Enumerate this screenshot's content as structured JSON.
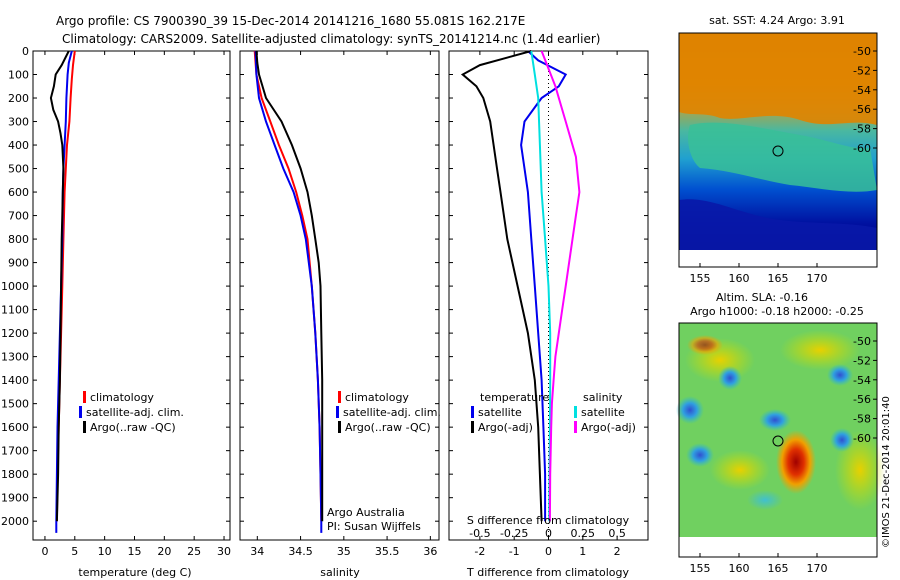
{
  "header": {
    "line1": "Argo profile: CS 7900390_39 15-Dec-2014 20141216_1680 55.081S 162.217E",
    "line2": "Climatology: CARS2009. Satellite-adjusted climatology: synTS_20141214.nc (1.4d earlier)"
  },
  "chart_data": [
    {
      "type": "line",
      "xlabel": "temperature (deg C)",
      "xlim": [
        -2,
        31
      ],
      "ylim": [
        0,
        2080
      ],
      "yreversed": true,
      "xticks": [
        0,
        5,
        10,
        15,
        20,
        25,
        30
      ],
      "yticks": [
        0,
        100,
        200,
        300,
        400,
        500,
        600,
        700,
        800,
        900,
        1000,
        1100,
        1200,
        1300,
        1400,
        1500,
        1600,
        1700,
        1800,
        1900,
        2000
      ],
      "legend": [
        "climatology",
        "satellite-adj. clim.",
        "Argo(..raw -QC)"
      ],
      "series": [
        {
          "name": "climatology",
          "color": "#ff0000",
          "points": [
            [
              5.0,
              0
            ],
            [
              4.7,
              60
            ],
            [
              4.5,
              120
            ],
            [
              4.3,
              200
            ],
            [
              4.1,
              300
            ],
            [
              3.7,
              400
            ],
            [
              3.5,
              500
            ],
            [
              3.3,
              600
            ],
            [
              3.1,
              800
            ],
            [
              2.9,
              1000
            ],
            [
              2.7,
              1200
            ],
            [
              2.5,
              1400
            ],
            [
              2.3,
              1600
            ],
            [
              2.1,
              1800
            ],
            [
              2.0,
              2000
            ]
          ]
        },
        {
          "name": "satellite-adj. clim.",
          "color": "#0000ee",
          "points": [
            [
              4.5,
              0
            ],
            [
              4.0,
              50
            ],
            [
              3.8,
              100
            ],
            [
              3.6,
              200
            ],
            [
              3.5,
              300
            ],
            [
              3.3,
              400
            ],
            [
              3.1,
              500
            ],
            [
              3.0,
              600
            ],
            [
              2.9,
              800
            ],
            [
              2.7,
              1000
            ],
            [
              2.5,
              1200
            ],
            [
              2.3,
              1400
            ],
            [
              2.1,
              1600
            ],
            [
              2.0,
              1800
            ],
            [
              1.9,
              2000
            ],
            [
              1.9,
              2050
            ]
          ]
        },
        {
          "name": "Argo(..raw -QC)",
          "color": "#000000",
          "points": [
            [
              4.0,
              0
            ],
            [
              2.8,
              60
            ],
            [
              1.8,
              100
            ],
            [
              1.5,
              150
            ],
            [
              1.0,
              200
            ],
            [
              1.4,
              250
            ],
            [
              2.2,
              300
            ],
            [
              2.6,
              350
            ],
            [
              2.9,
              400
            ],
            [
              3.1,
              500
            ],
            [
              3.0,
              600
            ],
            [
              2.9,
              700
            ],
            [
              2.8,
              800
            ],
            [
              2.7,
              1000
            ],
            [
              2.6,
              1200
            ],
            [
              2.5,
              1400
            ],
            [
              2.3,
              1600
            ],
            [
              2.2,
              1800
            ],
            [
              2.0,
              2000
            ]
          ]
        }
      ]
    },
    {
      "type": "line",
      "xlabel": "salinity",
      "xlim": [
        33.8,
        36.1
      ],
      "ylim": [
        0,
        2080
      ],
      "yreversed": true,
      "xticks": [
        34,
        34.5,
        35,
        35.5,
        36
      ],
      "legend": [
        "climatology",
        "satellite-adj. clim.",
        "Argo(..raw -QC)"
      ],
      "annotation": [
        "Argo Australia",
        "PI: Susan Wijffels"
      ],
      "series": [
        {
          "name": "climatology",
          "color": "#ff0000",
          "points": [
            [
              33.97,
              0
            ],
            [
              33.99,
              100
            ],
            [
              34.05,
              200
            ],
            [
              34.15,
              300
            ],
            [
              34.25,
              400
            ],
            [
              34.36,
              500
            ],
            [
              34.45,
              600
            ],
            [
              34.52,
              700
            ],
            [
              34.58,
              800
            ],
            [
              34.63,
              1000
            ],
            [
              34.67,
              1200
            ],
            [
              34.7,
              1400
            ],
            [
              34.72,
              1600
            ],
            [
              34.73,
              1800
            ],
            [
              34.74,
              2000
            ]
          ]
        },
        {
          "name": "satellite-adj. clim.",
          "color": "#0000ee",
          "points": [
            [
              33.98,
              0
            ],
            [
              33.99,
              100
            ],
            [
              34.02,
              200
            ],
            [
              34.1,
              300
            ],
            [
              34.2,
              400
            ],
            [
              34.3,
              500
            ],
            [
              34.42,
              600
            ],
            [
              34.5,
              700
            ],
            [
              34.56,
              800
            ],
            [
              34.63,
              1000
            ],
            [
              34.67,
              1200
            ],
            [
              34.7,
              1400
            ],
            [
              34.72,
              1600
            ],
            [
              34.73,
              1800
            ],
            [
              34.74,
              2000
            ],
            [
              34.74,
              2050
            ]
          ]
        },
        {
          "name": "Argo(..raw -QC)",
          "color": "#000000",
          "points": [
            [
              33.99,
              0
            ],
            [
              34.0,
              50
            ],
            [
              34.02,
              100
            ],
            [
              34.1,
              200
            ],
            [
              34.28,
              300
            ],
            [
              34.4,
              400
            ],
            [
              34.5,
              500
            ],
            [
              34.58,
              600
            ],
            [
              34.63,
              700
            ],
            [
              34.67,
              800
            ],
            [
              34.71,
              900
            ],
            [
              34.73,
              1000
            ],
            [
              34.74,
              1200
            ],
            [
              34.75,
              1400
            ],
            [
              34.75,
              1600
            ],
            [
              34.75,
              1800
            ],
            [
              34.75,
              2000
            ]
          ]
        }
      ]
    },
    {
      "type": "line",
      "xlabel": "T difference from climatology",
      "top_axis_label": "S difference from climatology",
      "xlim": [
        -2.9,
        2.9
      ],
      "ylim": [
        0,
        2080
      ],
      "yreversed": true,
      "xticks": [
        -2,
        -1,
        0,
        1,
        2
      ],
      "top_ticks": [
        "-0.5",
        "-0.25",
        "0",
        "0.25",
        "0.5"
      ],
      "legend_titles": [
        "temperature",
        "salinity"
      ],
      "legend": [
        "satellite",
        "Argo(-adj)",
        "satellite",
        "Argo(-adj)"
      ],
      "series": [
        {
          "name": "temperature satellite",
          "color": "#0000ee",
          "points": [
            [
              -0.6,
              0
            ],
            [
              -0.3,
              40
            ],
            [
              0.5,
              100
            ],
            [
              0.3,
              150
            ],
            [
              -0.2,
              200
            ],
            [
              -0.7,
              300
            ],
            [
              -0.8,
              400
            ],
            [
              -0.7,
              500
            ],
            [
              -0.6,
              600
            ],
            [
              -0.5,
              800
            ],
            [
              -0.4,
              1000
            ],
            [
              -0.3,
              1200
            ],
            [
              -0.2,
              1400
            ],
            [
              -0.15,
              1600
            ],
            [
              -0.1,
              1800
            ],
            [
              -0.1,
              2000
            ]
          ]
        },
        {
          "name": "temperature Argo(-adj)",
          "color": "#000000",
          "points": [
            [
              -0.5,
              0
            ],
            [
              -2.0,
              60
            ],
            [
              -2.5,
              100
            ],
            [
              -2.1,
              150
            ],
            [
              -1.9,
              200
            ],
            [
              -1.7,
              300
            ],
            [
              -1.6,
              400
            ],
            [
              -1.5,
              500
            ],
            [
              -1.4,
              600
            ],
            [
              -1.2,
              800
            ],
            [
              -0.9,
              1000
            ],
            [
              -0.6,
              1200
            ],
            [
              -0.4,
              1400
            ],
            [
              -0.3,
              1600
            ],
            [
              -0.25,
              1800
            ],
            [
              -0.2,
              2000
            ]
          ]
        },
        {
          "name": "salinity satellite",
          "color": "#00e0e0",
          "points": [
            [
              -0.5,
              0
            ],
            [
              -0.4,
              100
            ],
            [
              -0.3,
              200
            ],
            [
              -0.25,
              400
            ],
            [
              -0.2,
              600
            ],
            [
              -0.1,
              800
            ],
            [
              0.0,
              1000
            ],
            [
              0.05,
              1200
            ],
            [
              0.05,
              1400
            ],
            [
              0.04,
              1600
            ],
            [
              0.03,
              1800
            ],
            [
              0.02,
              2000
            ]
          ]
        },
        {
          "name": "salinity Argo(-adj)",
          "color": "#ff00ff",
          "points": [
            [
              -0.2,
              0
            ],
            [
              0.2,
              150
            ],
            [
              0.5,
              300
            ],
            [
              0.8,
              450
            ],
            [
              0.9,
              600
            ],
            [
              0.8,
              700
            ],
            [
              0.7,
              800
            ],
            [
              0.6,
              900
            ],
            [
              0.5,
              1000
            ],
            [
              0.4,
              1100
            ],
            [
              0.3,
              1200
            ],
            [
              0.2,
              1300
            ],
            [
              0.15,
              1400
            ],
            [
              0.1,
              1500
            ],
            [
              0.08,
              1600
            ],
            [
              0.05,
              1800
            ],
            [
              0.04,
              2000
            ]
          ]
        }
      ]
    }
  ],
  "maps": {
    "sst_title": "sat. SST: 4.24  Argo: 3.91",
    "sla_title1": "Altim. SLA: -0.16",
    "sla_title2": "Argo h1000: -0.18 h2000: -0.25",
    "lon_ticks": [
      "155",
      "160",
      "165",
      "170"
    ],
    "lat_ticks": [
      "-50",
      "-52",
      "-54",
      "-56",
      "-58",
      "-60"
    ],
    "watermark": "©IMOS 21-Dec-2014 20:01:40"
  }
}
